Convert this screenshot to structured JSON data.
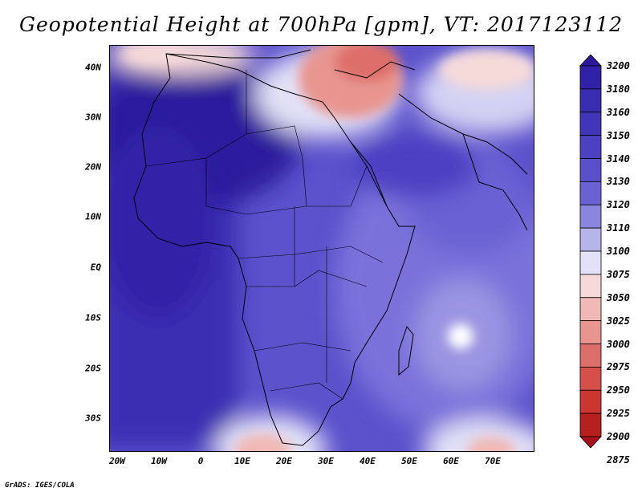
{
  "title": "Geopotential Height at 700hPa [gpm], VT: 2017123112",
  "credit": "GrADS: IGES/COLA",
  "lat_labels": [
    "40N",
    "30N",
    "20N",
    "10N",
    "EQ",
    "10S",
    "20S",
    "30S"
  ],
  "lon_labels": [
    "20W",
    "10W",
    "0",
    "10E",
    "20E",
    "30E",
    "40E",
    "50E",
    "60E",
    "70E"
  ],
  "colorbar": {
    "levels": [
      "3200",
      "3180",
      "3160",
      "3150",
      "3140",
      "3130",
      "3120",
      "3110",
      "3100",
      "3075",
      "3050",
      "3025",
      "3000",
      "2975",
      "2950",
      "2925",
      "2900",
      "2875"
    ],
    "colors": [
      "#2a1a9c",
      "#3121a8",
      "#3a2db2",
      "#4335bb",
      "#4d41c3",
      "#5a50cc",
      "#6a62d4",
      "#8b86dd",
      "#b7b4ea",
      "#e2e1f7",
      "#f6dada",
      "#f0b9b6",
      "#e89590",
      "#de6e69",
      "#d65049",
      "#cc3530",
      "#b8201d",
      "#a8101a"
    ]
  },
  "map": {
    "region": "Africa",
    "lon_range": [
      -22,
      80
    ],
    "lat_range": [
      -37,
      45
    ]
  }
}
